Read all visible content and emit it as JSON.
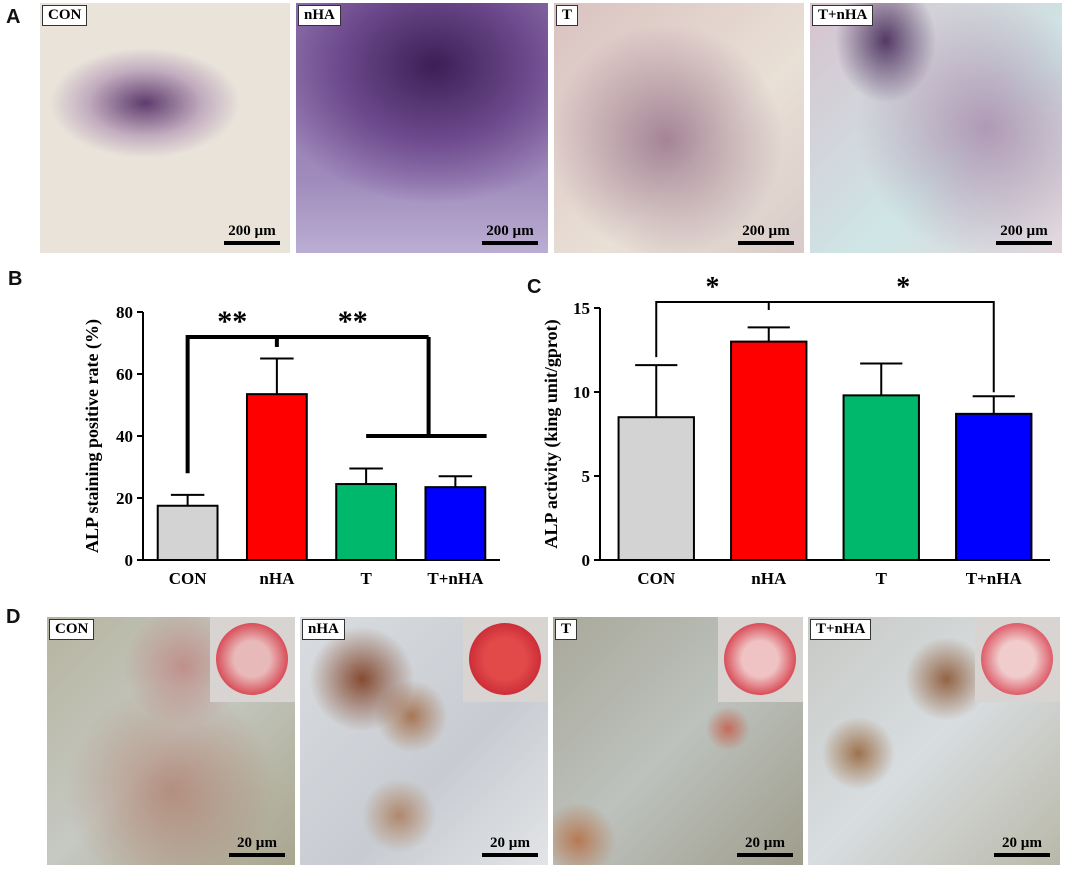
{
  "panels": {
    "a": {
      "letter": "A",
      "images": [
        {
          "label": "CON",
          "scale": "200 µm"
        },
        {
          "label": "nHA",
          "scale": "200 µm"
        },
        {
          "label": "T",
          "scale": "200 µm"
        },
        {
          "label": "T+nHA",
          "scale": "200 µm"
        }
      ]
    },
    "b": {
      "letter": "B"
    },
    "c": {
      "letter": "C"
    },
    "d": {
      "letter": "D",
      "images": [
        {
          "label": "CON",
          "scale": "20 µm"
        },
        {
          "label": "nHA",
          "scale": "20 µm"
        },
        {
          "label": "T",
          "scale": "20 µm"
        },
        {
          "label": "T+nHA",
          "scale": "20 µm"
        }
      ]
    }
  },
  "colors": {
    "CON": "#d3d3d3",
    "nHA": "#ff0000",
    "T": "#00b86b",
    "T+nHA": "#0000ff"
  },
  "chart_data": [
    {
      "type": "bar",
      "categories": [
        "CON",
        "nHA",
        "T",
        "T+nHA"
      ],
      "values": [
        17.5,
        53.5,
        24.5,
        23.5
      ],
      "errors": [
        3.5,
        11.5,
        5.0,
        3.5
      ],
      "ylabel": "ALP staining positive rate (%)",
      "ylim": [
        0,
        80
      ],
      "yticks": [
        "0",
        "20",
        "40",
        "60",
        "80"
      ],
      "significance": [
        "**",
        "**"
      ]
    },
    {
      "type": "bar",
      "categories": [
        "CON",
        "nHA",
        "T",
        "T+nHA"
      ],
      "values": [
        8.5,
        13.0,
        9.8,
        8.7
      ],
      "errors": [
        3.1,
        0.85,
        1.9,
        1.05
      ],
      "ylabel": "ALP activity (king unit/gprot)",
      "ylim": [
        0,
        15
      ],
      "yticks": [
        "0",
        "5",
        "10",
        "15"
      ],
      "significance": [
        "*",
        "*"
      ]
    }
  ]
}
